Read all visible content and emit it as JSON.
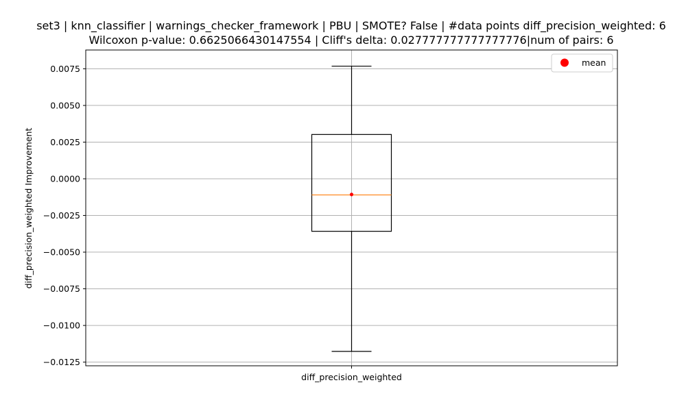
{
  "chart_data": {
    "type": "box",
    "title_line1": "set3 | knn_classifier | warnings_checker_framework | PBU | SMOTE? False | #data points diff_precision_weighted: 6",
    "title_line2": "Wilcoxon p-value: 0.6625066430147554 | Cliff's delta: 0.027777777777777776|num of pairs: 6",
    "xlabel": "",
    "ylabel": "diff_precision_weighted Improvement",
    "categories": [
      "diff_precision_weighted"
    ],
    "box": {
      "whisker_low": -0.01177,
      "q1": -0.00358,
      "median": -0.0011,
      "q3": 0.00302,
      "whisker_high": 0.00768,
      "mean": -0.00107
    },
    "ylim": [
      -0.01275,
      0.00878
    ],
    "yticks": [
      0.0075,
      0.005,
      0.0025,
      0.0,
      -0.0025,
      -0.005,
      -0.0075,
      -0.01,
      -0.0125
    ],
    "ytick_labels": [
      "0.0075",
      "0.0050",
      "0.0025",
      "0.0000",
      "−0.0025",
      "−0.0050",
      "−0.0075",
      "−0.0100",
      "−0.0125"
    ],
    "grid": true,
    "legend": {
      "placement": "top-right",
      "entries": [
        {
          "label": "mean",
          "color": "#ff0000",
          "marker": "circle"
        }
      ]
    },
    "colors": {
      "box": "#000000",
      "median": "#ff7f0e",
      "mean": "#ff0000",
      "grid": "#b0b0b0"
    }
  }
}
